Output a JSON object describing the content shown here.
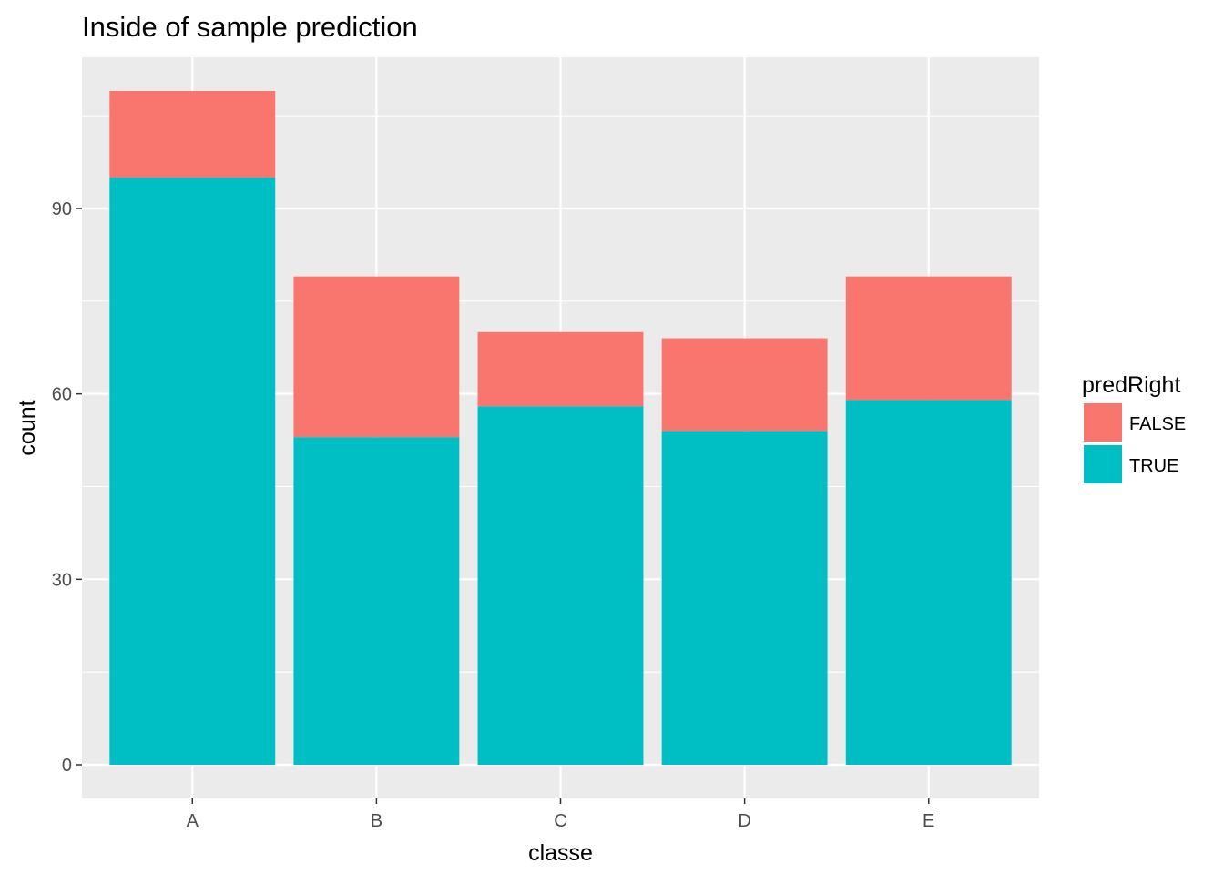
{
  "chart_data": {
    "type": "bar",
    "stacked": true,
    "title": "Inside of sample prediction",
    "xlabel": "classe",
    "ylabel": "count",
    "categories": [
      "A",
      "B",
      "C",
      "D",
      "E"
    ],
    "series": [
      {
        "name": "TRUE",
        "values": [
          95,
          53,
          58,
          54,
          59
        ],
        "color": "#00BFC4"
      },
      {
        "name": "FALSE",
        "values": [
          14,
          26,
          12,
          15,
          20
        ],
        "color": "#F8766D"
      }
    ],
    "ylim": [
      -5.45,
      114.45
    ],
    "yticks": [
      0,
      30,
      60,
      90
    ],
    "y_minor_ticks": [
      15,
      45,
      75,
      105
    ],
    "grid": true,
    "panel_background": "#EBEBEB",
    "grid_color": "#FFFFFF",
    "legend": {
      "title": "predRight",
      "position": "right",
      "entries": [
        {
          "label": "FALSE",
          "color": "#F8766D"
        },
        {
          "label": "TRUE",
          "color": "#00BFC4"
        }
      ]
    }
  }
}
